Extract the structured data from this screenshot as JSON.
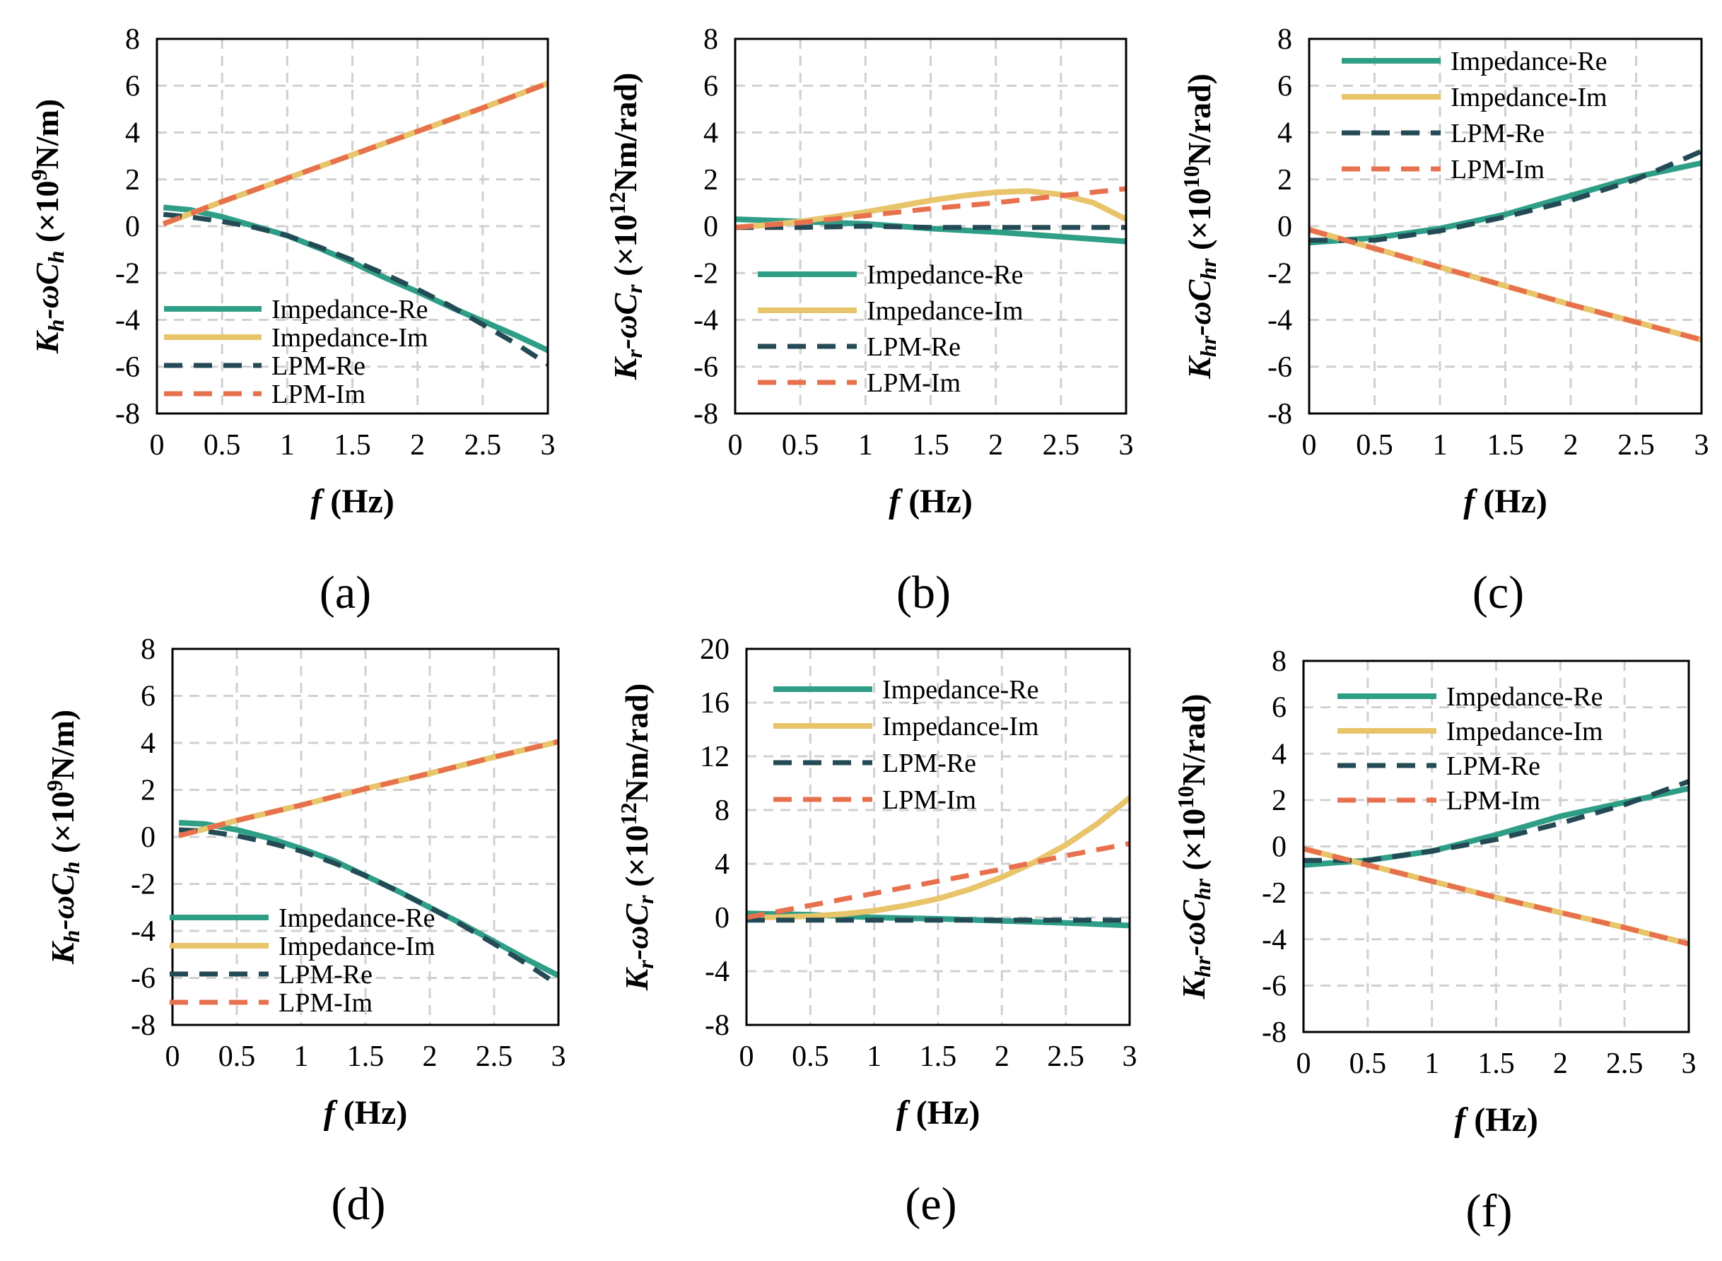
{
  "figure": {
    "colors": {
      "impedance_re": "#2e9e86",
      "impedance_im": "#e8c46a",
      "lpm_re": "#234a55",
      "lpm_im": "#e7704e",
      "grid": "#d0d0d0",
      "frame": "#000000"
    }
  },
  "chart_data": [
    {
      "type": "line",
      "panel_label": "(a)",
      "ylabel": {
        "k": "K",
        "k_sub": "h",
        "mid": "-ωC",
        "c_sub": "h",
        "pre": " (×10",
        "sup": "9",
        "post": "N/m)"
      },
      "xlabel": {
        "f": "f",
        "unit": " (Hz)"
      },
      "xlim": [
        0,
        3
      ],
      "ylim": [
        -8,
        8
      ],
      "x_ticks": [
        "0",
        "0.5",
        "1",
        "1.5",
        "2",
        "2.5",
        "3"
      ],
      "y_ticks": [
        "8",
        "6",
        "4",
        "2",
        "0",
        "-2",
        "-4",
        "-6",
        "-8"
      ],
      "legend_position": "bottom-left",
      "series": [
        {
          "name": "Impedance-Re",
          "style": "solid",
          "color": "#2e9e86",
          "x": [
            0.05,
            0.25,
            0.5,
            0.75,
            1,
            1.25,
            1.5,
            1.75,
            2,
            2.25,
            2.5,
            2.75,
            3
          ],
          "y": [
            0.8,
            0.7,
            0.4,
            0.0,
            -0.4,
            -0.95,
            -1.55,
            -2.2,
            -2.8,
            -3.45,
            -4.05,
            -4.65,
            -5.3
          ]
        },
        {
          "name": "Impedance-Im",
          "style": "solid",
          "color": "#e8c46a",
          "x": [
            0.05,
            0.5,
            1,
            1.5,
            2,
            2.5,
            3
          ],
          "y": [
            0.1,
            1.05,
            2.05,
            3.05,
            4.05,
            5.05,
            6.1
          ]
        },
        {
          "name": "LPM-Re",
          "style": "dashed",
          "color": "#234a55",
          "x": [
            0.05,
            0.25,
            0.5,
            0.75,
            1,
            1.25,
            1.5,
            1.75,
            2,
            2.25,
            2.5,
            2.75,
            3
          ],
          "y": [
            0.5,
            0.4,
            0.2,
            -0.05,
            -0.4,
            -0.9,
            -1.45,
            -2.05,
            -2.7,
            -3.4,
            -4.2,
            -5.0,
            -5.9
          ]
        },
        {
          "name": "LPM-Im",
          "style": "dashed",
          "color": "#e7704e",
          "x": [
            0.05,
            0.5,
            1,
            1.5,
            2,
            2.5,
            3
          ],
          "y": [
            0.1,
            1.05,
            2.05,
            3.05,
            4.05,
            5.05,
            6.1
          ]
        }
      ]
    },
    {
      "type": "line",
      "panel_label": "(b)",
      "ylabel": {
        "k": "K",
        "k_sub": "r",
        "mid": "-ωC",
        "c_sub": "r",
        "pre": " (×10",
        "sup": "12",
        "post": "Nm/rad)"
      },
      "xlabel": {
        "f": "f",
        "unit": " (Hz)"
      },
      "xlim": [
        0,
        3
      ],
      "ylim": [
        -8,
        8
      ],
      "x_ticks": [
        "0",
        "0.5",
        "1",
        "1.5",
        "2",
        "2.5",
        "3"
      ],
      "y_ticks": [
        "8",
        "6",
        "4",
        "2",
        "0",
        "-2",
        "-4",
        "-6",
        "-8"
      ],
      "legend_position": "lower-left",
      "series": [
        {
          "name": "Impedance-Re",
          "style": "solid",
          "color": "#2e9e86",
          "x": [
            0,
            0.5,
            1,
            1.5,
            2,
            2.5,
            3
          ],
          "y": [
            0.3,
            0.2,
            0.1,
            -0.1,
            -0.25,
            -0.45,
            -0.65
          ]
        },
        {
          "name": "Impedance-Im",
          "style": "solid",
          "color": "#e8c46a",
          "x": [
            0,
            0.25,
            0.5,
            0.75,
            1,
            1.25,
            1.5,
            1.75,
            2,
            2.25,
            2.5,
            2.75,
            3
          ],
          "y": [
            -0.05,
            0.05,
            0.2,
            0.4,
            0.6,
            0.85,
            1.1,
            1.3,
            1.45,
            1.5,
            1.35,
            1.0,
            0.3
          ]
        },
        {
          "name": "LPM-Re",
          "style": "dashed",
          "color": "#234a55",
          "x": [
            0,
            0.5,
            1,
            1.5,
            2,
            2.5,
            3
          ],
          "y": [
            -0.05,
            -0.05,
            0.0,
            -0.05,
            -0.05,
            -0.05,
            -0.05
          ]
        },
        {
          "name": "LPM-Im",
          "style": "dashed",
          "color": "#e7704e",
          "x": [
            0,
            0.5,
            1,
            1.5,
            2,
            2.5,
            3
          ],
          "y": [
            -0.05,
            0.15,
            0.45,
            0.75,
            1.0,
            1.3,
            1.6
          ]
        }
      ]
    },
    {
      "type": "line",
      "panel_label": "(c)",
      "ylabel": {
        "k": "K",
        "k_sub": "hr",
        "mid": "-ωC",
        "c_sub": "hr",
        "pre": " (×10",
        "sup": "10",
        "post": "N/rad)"
      },
      "xlabel": {
        "f": "f",
        "unit": " (Hz)"
      },
      "xlim": [
        0,
        3
      ],
      "ylim": [
        -8,
        8
      ],
      "x_ticks": [
        "0",
        "0.5",
        "1",
        "1.5",
        "2",
        "2.5",
        "3"
      ],
      "y_ticks": [
        "8",
        "6",
        "4",
        "2",
        "0",
        "-2",
        "-4",
        "-6",
        "-8"
      ],
      "legend_position": "top-left",
      "series": [
        {
          "name": "Impedance-Re",
          "style": "solid",
          "color": "#2e9e86",
          "x": [
            0,
            0.5,
            1,
            1.5,
            2,
            2.5,
            3
          ],
          "y": [
            -0.7,
            -0.5,
            -0.1,
            0.5,
            1.3,
            2.1,
            2.7
          ]
        },
        {
          "name": "Impedance-Im",
          "style": "solid",
          "color": "#e8c46a",
          "x": [
            0,
            0.5,
            1,
            1.5,
            2,
            2.5,
            3
          ],
          "y": [
            -0.15,
            -0.95,
            -1.75,
            -2.55,
            -3.35,
            -4.1,
            -4.85
          ]
        },
        {
          "name": "LPM-Re",
          "style": "dashed",
          "color": "#234a55",
          "x": [
            0,
            0.5,
            1,
            1.5,
            2,
            2.5,
            3
          ],
          "y": [
            -0.6,
            -0.6,
            -0.2,
            0.4,
            1.1,
            2.0,
            3.2
          ]
        },
        {
          "name": "LPM-Im",
          "style": "dashed",
          "color": "#e7704e",
          "x": [
            0,
            0.5,
            1,
            1.5,
            2,
            2.5,
            3
          ],
          "y": [
            -0.15,
            -0.95,
            -1.75,
            -2.55,
            -3.35,
            -4.1,
            -4.85
          ]
        }
      ]
    },
    {
      "type": "line",
      "panel_label": "(d)",
      "ylabel": {
        "k": "K",
        "k_sub": "h",
        "mid": "-ωC",
        "c_sub": "h",
        "pre": " (×10",
        "sup": "9",
        "post": "N/m)"
      },
      "xlabel": {
        "f": "f",
        "unit": " (Hz)"
      },
      "xlim": [
        0,
        3
      ],
      "ylim": [
        -8,
        8
      ],
      "x_ticks": [
        "0",
        "0.5",
        "1",
        "1.5",
        "2",
        "2.5",
        "3"
      ],
      "y_ticks": [
        "8",
        "6",
        "4",
        "2",
        "0",
        "-2",
        "-4",
        "-6",
        "-8"
      ],
      "legend_position": "bottom-left",
      "series": [
        {
          "name": "Impedance-Re",
          "style": "solid",
          "color": "#2e9e86",
          "x": [
            0.05,
            0.25,
            0.5,
            0.75,
            1,
            1.25,
            1.5,
            1.75,
            2,
            2.25,
            2.5,
            2.75,
            3
          ],
          "y": [
            0.6,
            0.55,
            0.3,
            -0.05,
            -0.5,
            -1.0,
            -1.65,
            -2.3,
            -3.0,
            -3.7,
            -4.45,
            -5.2,
            -5.9
          ]
        },
        {
          "name": "Impedance-Im",
          "style": "solid",
          "color": "#e8c46a",
          "x": [
            0.05,
            0.5,
            1,
            1.5,
            2,
            2.5,
            3
          ],
          "y": [
            0.05,
            0.7,
            1.35,
            2.05,
            2.7,
            3.4,
            4.05
          ]
        },
        {
          "name": "LPM-Re",
          "style": "dashed",
          "color": "#234a55",
          "x": [
            0.05,
            0.25,
            0.5,
            0.75,
            1,
            1.25,
            1.5,
            1.75,
            2,
            2.25,
            2.5,
            2.75,
            3
          ],
          "y": [
            0.3,
            0.25,
            0.05,
            -0.25,
            -0.6,
            -1.1,
            -1.65,
            -2.3,
            -3.0,
            -3.75,
            -4.55,
            -5.4,
            -6.3
          ]
        },
        {
          "name": "LPM-Im",
          "style": "dashed",
          "color": "#e7704e",
          "x": [
            0.05,
            0.5,
            1,
            1.5,
            2,
            2.5,
            3
          ],
          "y": [
            0.05,
            0.7,
            1.35,
            2.05,
            2.7,
            3.4,
            4.05
          ]
        }
      ]
    },
    {
      "type": "line",
      "panel_label": "(e)",
      "ylabel": {
        "k": "K",
        "k_sub": "r",
        "mid": "-ωC",
        "c_sub": "r",
        "pre": " (×10",
        "sup": "12",
        "post": "Nm/rad)"
      },
      "xlabel": {
        "f": "f",
        "unit": " (Hz)"
      },
      "xlim": [
        0,
        3
      ],
      "ylim": [
        -8,
        20
      ],
      "x_ticks": [
        "0",
        "0.5",
        "1",
        "1.5",
        "2",
        "2.5",
        "3"
      ],
      "y_ticks": [
        "20",
        "16",
        "12",
        "8",
        "4",
        "0",
        "-4",
        "-8"
      ],
      "legend_position": "top-left",
      "series": [
        {
          "name": "Impedance-Re",
          "style": "solid",
          "color": "#2e9e86",
          "x": [
            0,
            0.5,
            1,
            1.5,
            2,
            2.5,
            3
          ],
          "y": [
            0.3,
            0.2,
            0.0,
            -0.1,
            -0.25,
            -0.4,
            -0.6
          ]
        },
        {
          "name": "Impedance-Im",
          "style": "solid",
          "color": "#e8c46a",
          "x": [
            0,
            0.25,
            0.5,
            0.75,
            1,
            1.25,
            1.5,
            1.75,
            2,
            2.25,
            2.5,
            2.75,
            3
          ],
          "y": [
            0,
            0.02,
            0.1,
            0.25,
            0.5,
            0.9,
            1.4,
            2.1,
            3.0,
            4.1,
            5.4,
            7.0,
            8.9
          ]
        },
        {
          "name": "LPM-Re",
          "style": "dashed",
          "color": "#234a55",
          "x": [
            0,
            0.5,
            1,
            1.5,
            2,
            2.5,
            3
          ],
          "y": [
            -0.2,
            -0.2,
            -0.2,
            -0.2,
            -0.2,
            -0.2,
            -0.2
          ]
        },
        {
          "name": "LPM-Im",
          "style": "dashed",
          "color": "#e7704e",
          "x": [
            0,
            0.5,
            1,
            1.5,
            2,
            2.5,
            3
          ],
          "y": [
            0,
            0.9,
            1.8,
            2.7,
            3.6,
            4.6,
            5.5
          ]
        }
      ]
    },
    {
      "type": "line",
      "panel_label": "(f)",
      "ylabel": {
        "k": "K",
        "k_sub": "hr",
        "mid": "-ωC",
        "c_sub": "hr",
        "pre": " (×10",
        "sup": "10",
        "post": "N/rad)"
      },
      "xlabel": {
        "f": "f",
        "unit": " (Hz)"
      },
      "xlim": [
        0,
        3
      ],
      "ylim": [
        -8,
        8
      ],
      "x_ticks": [
        "0",
        "0.5",
        "1",
        "1.5",
        "2",
        "2.5",
        "3"
      ],
      "y_ticks": [
        "8",
        "6",
        "4",
        "2",
        "0",
        "-2",
        "-4",
        "-6",
        "-8"
      ],
      "legend_position": "top-left",
      "series": [
        {
          "name": "Impedance-Re",
          "style": "solid",
          "color": "#2e9e86",
          "x": [
            0,
            0.5,
            1,
            1.5,
            2,
            2.5,
            3
          ],
          "y": [
            -0.8,
            -0.6,
            -0.2,
            0.5,
            1.3,
            1.9,
            2.5
          ]
        },
        {
          "name": "Impedance-Im",
          "style": "solid",
          "color": "#e8c46a",
          "x": [
            0,
            0.5,
            1,
            1.5,
            2,
            2.5,
            3
          ],
          "y": [
            -0.1,
            -0.8,
            -1.5,
            -2.2,
            -2.85,
            -3.5,
            -4.2
          ]
        },
        {
          "name": "LPM-Re",
          "style": "dashed",
          "color": "#234a55",
          "x": [
            0,
            0.5,
            1,
            1.5,
            2,
            2.5,
            3
          ],
          "y": [
            -0.6,
            -0.6,
            -0.2,
            0.3,
            1.0,
            1.8,
            2.8
          ]
        },
        {
          "name": "LPM-Im",
          "style": "dashed",
          "color": "#e7704e",
          "x": [
            0,
            0.5,
            1,
            1.5,
            2,
            2.5,
            3
          ],
          "y": [
            -0.1,
            -0.8,
            -1.5,
            -2.2,
            -2.85,
            -3.5,
            -4.2
          ]
        }
      ]
    }
  ]
}
